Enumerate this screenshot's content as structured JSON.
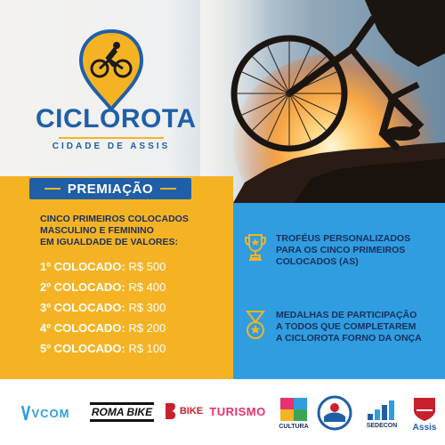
{
  "brand": {
    "title_part1": "CICLO",
    "title_part2": "ROTA",
    "subtitle": "CIDADE DE ASSIS"
  },
  "section": {
    "title": "PREMIAÇÃO"
  },
  "intro": {
    "line1": "CINCO PRIMEIROS COLOCADOS",
    "line2": "MASCULINO E FEMININO",
    "line3": "EM IGUALDADE DE VALORES:"
  },
  "prizes": [
    {
      "position": "1º COLOCADO:",
      "amount": "R$ 500"
    },
    {
      "position": "2º COLOCADO:",
      "amount": "R$ 400"
    },
    {
      "position": "3º COLOCADO:",
      "amount": "R$ 300"
    },
    {
      "position": "4º COLOCADO:",
      "amount": "R$ 200"
    },
    {
      "position": "5º COLOCADO:",
      "amount": "R$ 100"
    }
  ],
  "features": [
    {
      "icon": "trophy-icon",
      "line1": "TROFÉUS PERSONALIZADOS",
      "line2": "PARA OS CINCO PRIMEIROS",
      "line3": "COLOCADOS (AS)"
    },
    {
      "icon": "medal-icon",
      "line1": "MEDALHAS DE PARTICIPAÇÃO",
      "line2": "A TODOS QUE COMPLETAREM",
      "line3": "A CICLOROTA FORNO DA ONÇA"
    }
  ],
  "sponsors": {
    "vcom": "VCOM",
    "roma_bike": "ROMA BIKE",
    "leandro_bike": "BIKE",
    "turismo": "TURISMO",
    "cultura": "CULTURA",
    "sedecon": "SEDECON",
    "assis": "Assis"
  },
  "colors": {
    "brand_blue": "#1f5fa8",
    "accent_yellow": "#f5b324",
    "panel_blue": "#2f9de0",
    "text_navy": "#1a2f5a"
  }
}
